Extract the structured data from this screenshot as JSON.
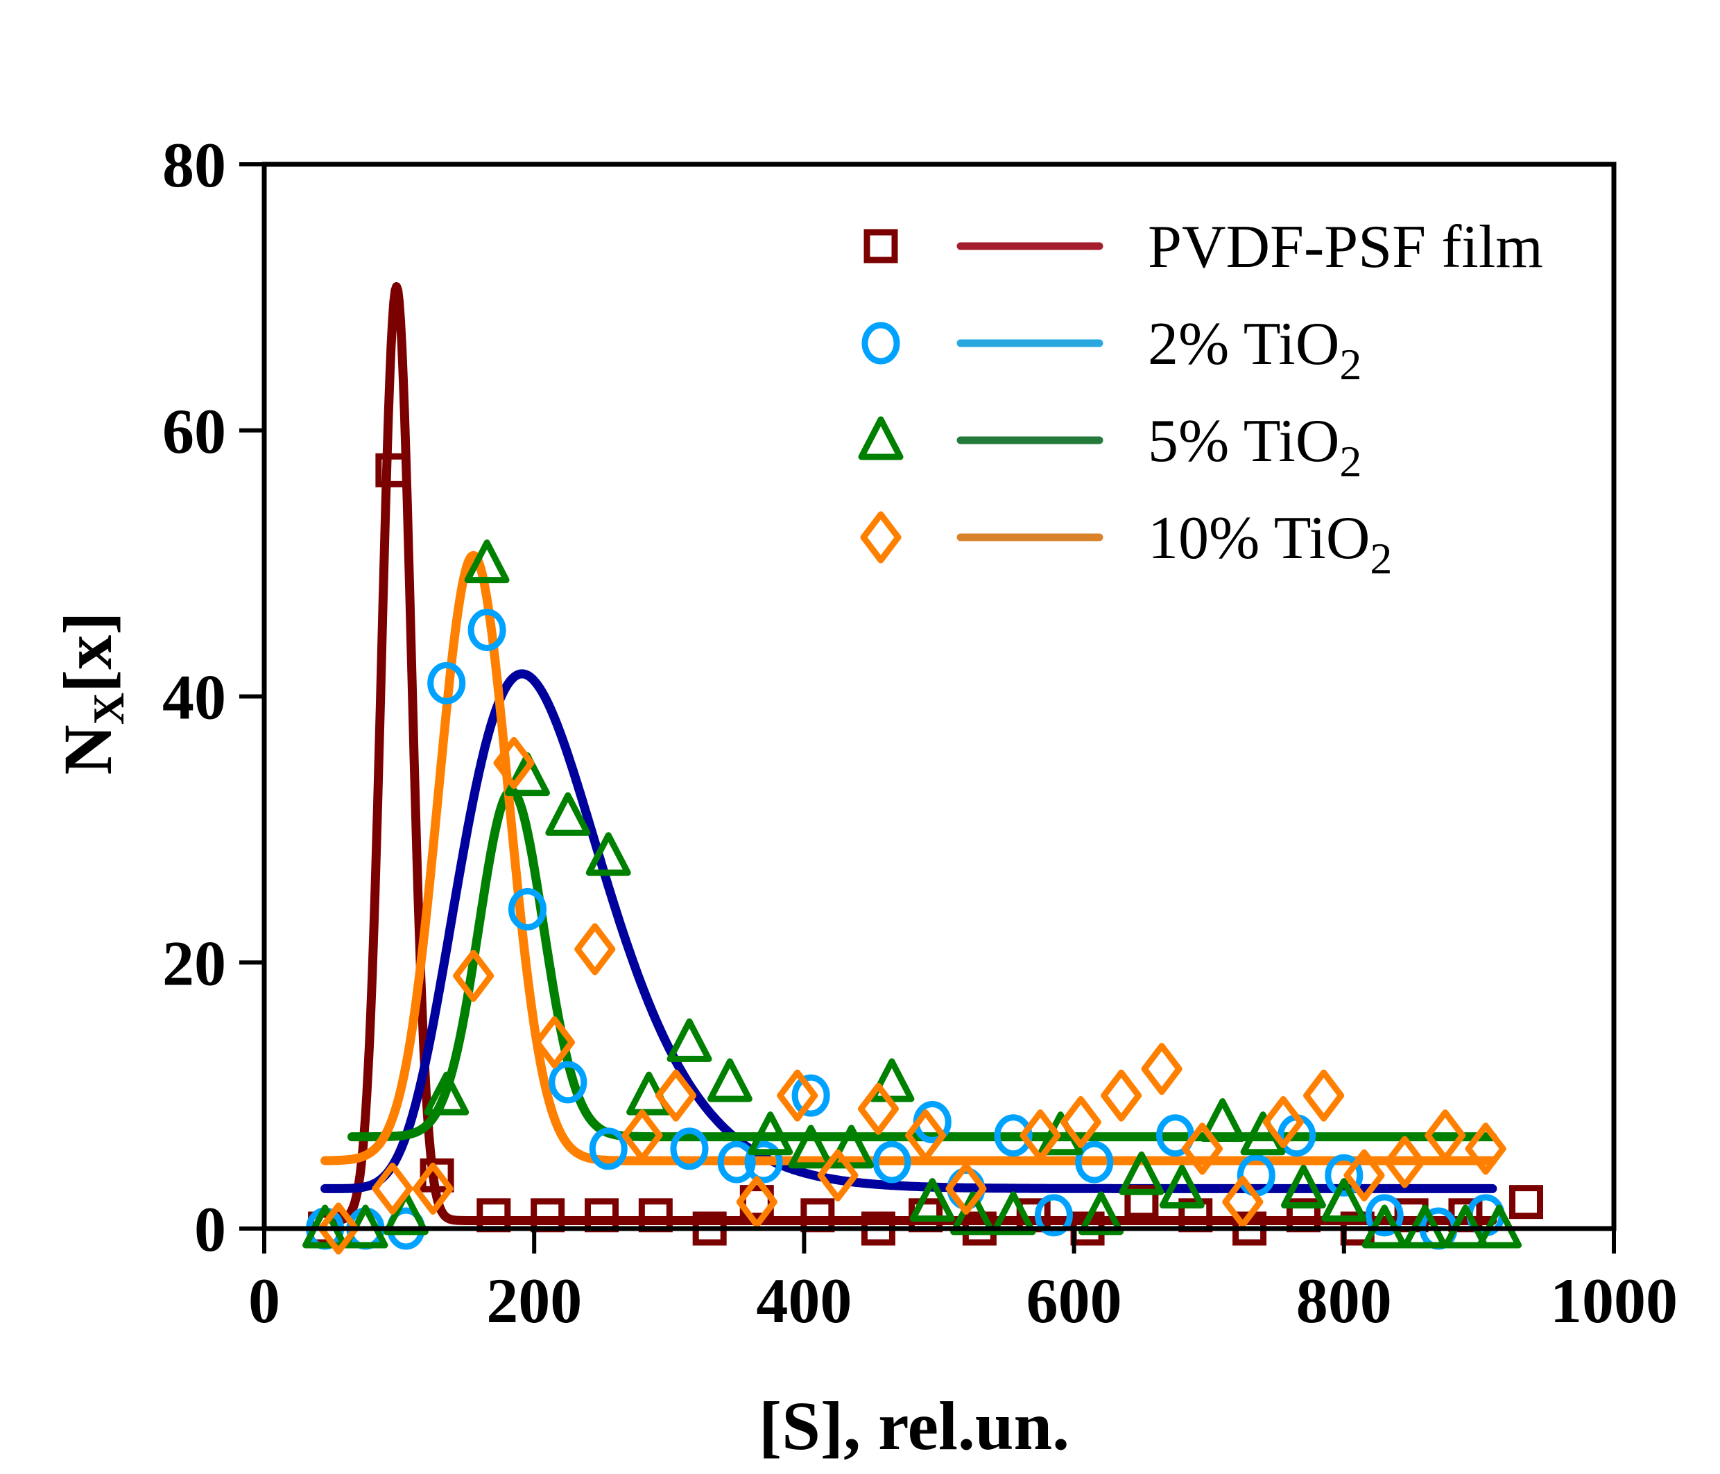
{
  "chart_data": {
    "type": "scatter",
    "title": "",
    "xlabel": "[S], rel.un.",
    "ylabel_main": "N",
    "ylabel_sub": "X",
    "ylabel_tail": "[x]",
    "xlim": [
      0,
      1000
    ],
    "ylim": [
      0,
      80
    ],
    "xticks": [
      0,
      200,
      400,
      600,
      800,
      1000
    ],
    "yticks": [
      0,
      20,
      40,
      60,
      80
    ],
    "xtick_labels": [
      "0",
      "200",
      "400",
      "600",
      "800",
      "1000"
    ],
    "ytick_labels": [
      "0",
      "20",
      "40",
      "60",
      "80"
    ],
    "grid": false,
    "legend_position": "top-right",
    "series": [
      {
        "name": "PVDF-PSF film",
        "label_main": "PVDF-PSF film",
        "label_sub": "",
        "marker": "square",
        "marker_color": "#7b0000",
        "line_color": "#7b0000",
        "legend_line_color": "#a51e2d",
        "points": [
          [
            45,
            0
          ],
          [
            95,
            57
          ],
          [
            128,
            4
          ],
          [
            170,
            1
          ],
          [
            210,
            1
          ],
          [
            250,
            1
          ],
          [
            290,
            1
          ],
          [
            330,
            0
          ],
          [
            365,
            2
          ],
          [
            410,
            1
          ],
          [
            455,
            0
          ],
          [
            490,
            1
          ],
          [
            530,
            0
          ],
          [
            570,
            1
          ],
          [
            610,
            0
          ],
          [
            650,
            2
          ],
          [
            690,
            1
          ],
          [
            730,
            0
          ],
          [
            770,
            1
          ],
          [
            810,
            0
          ],
          [
            850,
            1
          ],
          [
            890,
            1
          ],
          [
            935,
            2
          ]
        ],
        "fit": {
          "type": "gauss",
          "x0": 98,
          "w": 11,
          "amp": 70.2,
          "base": 0.6,
          "xmin": 55,
          "xmax": 910
        }
      },
      {
        "name": "2% TiO2",
        "label_main": "2% TiO",
        "label_sub": "2",
        "marker": "circle",
        "marker_color": "#00a2ff",
        "line_color": "#00009c",
        "legend_line_color": "#29a8e0",
        "points": [
          [
            45,
            0
          ],
          [
            75,
            0
          ],
          [
            105,
            0
          ],
          [
            135,
            41
          ],
          [
            165,
            45
          ],
          [
            195,
            24
          ],
          [
            225,
            11
          ],
          [
            255,
            6
          ],
          [
            315,
            6
          ],
          [
            350,
            5
          ],
          [
            370,
            5
          ],
          [
            405,
            10
          ],
          [
            465,
            5
          ],
          [
            495,
            8
          ],
          [
            520,
            3
          ],
          [
            555,
            7
          ],
          [
            585,
            1
          ],
          [
            615,
            5
          ],
          [
            675,
            7
          ],
          [
            735,
            4
          ],
          [
            765,
            7
          ],
          [
            800,
            4
          ],
          [
            830,
            1
          ],
          [
            870,
            0
          ],
          [
            905,
            1
          ]
        ],
        "fit": {
          "type": "lognorm",
          "x0": 191,
          "w": 52,
          "amp": 38.7,
          "base": 3,
          "xmin": 45,
          "xmax": 910
        }
      },
      {
        "name": "5% TiO2",
        "label_main": "5% TiO",
        "label_sub": "2",
        "marker": "triangle",
        "marker_color": "#008000",
        "line_color": "#008000",
        "legend_line_color": "#237a3a",
        "points": [
          [
            45,
            0
          ],
          [
            75,
            0
          ],
          [
            105,
            1
          ],
          [
            135,
            10
          ],
          [
            165,
            50
          ],
          [
            195,
            34
          ],
          [
            225,
            31
          ],
          [
            255,
            28
          ],
          [
            285,
            10
          ],
          [
            315,
            14
          ],
          [
            345,
            11
          ],
          [
            375,
            7
          ],
          [
            405,
            6
          ],
          [
            435,
            6
          ],
          [
            465,
            11
          ],
          [
            495,
            2
          ],
          [
            525,
            1
          ],
          [
            555,
            1
          ],
          [
            590,
            7
          ],
          [
            620,
            1
          ],
          [
            650,
            4
          ],
          [
            680,
            3
          ],
          [
            710,
            8
          ],
          [
            740,
            7
          ],
          [
            770,
            3
          ],
          [
            800,
            2
          ],
          [
            830,
            0
          ],
          [
            860,
            0
          ],
          [
            890,
            0
          ],
          [
            915,
            0
          ]
        ],
        "fit": {
          "type": "gauss",
          "x0": 183,
          "w": 24,
          "amp": 26,
          "base": 6.9,
          "xmin": 65,
          "xmax": 910
        }
      },
      {
        "name": "10% TiO2",
        "label_main": "10% TiO",
        "label_sub": "2",
        "marker": "diamond",
        "marker_color": "#ff8000",
        "line_color": "#ff8000",
        "legend_line_color": "#d98229",
        "points": [
          [
            55,
            0
          ],
          [
            95,
            3
          ],
          [
            125,
            3
          ],
          [
            155,
            19
          ],
          [
            185,
            35
          ],
          [
            215,
            14
          ],
          [
            245,
            21
          ],
          [
            280,
            7
          ],
          [
            305,
            10
          ],
          [
            365,
            2
          ],
          [
            395,
            10
          ],
          [
            425,
            4
          ],
          [
            455,
            9
          ],
          [
            490,
            7
          ],
          [
            520,
            3
          ],
          [
            575,
            7
          ],
          [
            605,
            8
          ],
          [
            635,
            10
          ],
          [
            665,
            12
          ],
          [
            695,
            6
          ],
          [
            725,
            2
          ],
          [
            755,
            8
          ],
          [
            785,
            10
          ],
          [
            815,
            4
          ],
          [
            845,
            5
          ],
          [
            875,
            7
          ],
          [
            905,
            6
          ]
        ],
        "fit": {
          "type": "gauss",
          "x0": 155,
          "w": 26,
          "amp": 45.5,
          "base": 5.1,
          "xmin": 45,
          "xmax": 910
        }
      }
    ]
  }
}
